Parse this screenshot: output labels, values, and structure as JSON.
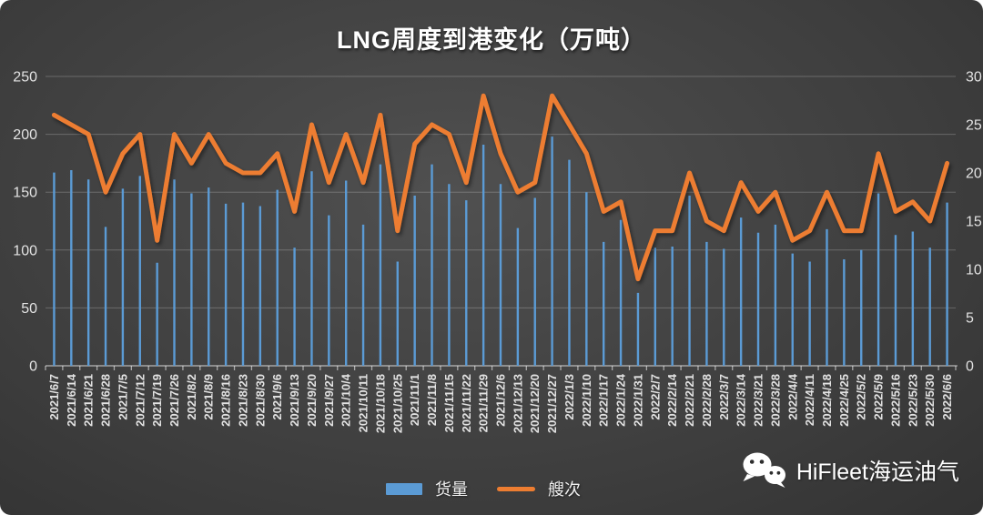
{
  "title": "LNG周度到港变化（万吨）",
  "legend": {
    "bar_label": "货量",
    "line_label": "艘次"
  },
  "watermark": {
    "text": "HiFleet海运油气",
    "icon": "wechat-icon"
  },
  "colors": {
    "bar": "#5B9BD5",
    "line": "#ED7D31",
    "text": "#e2e2e2",
    "gridline": "rgba(255,255,255,0.22)",
    "axis_line": "rgba(255,255,255,0.55)",
    "background_center": "#505050",
    "background_edge": "#262626"
  },
  "left_axis": {
    "ticks": [
      0,
      50,
      100,
      150,
      200,
      250
    ]
  },
  "right_axis": {
    "ticks": [
      0,
      5,
      10,
      15,
      20,
      25,
      30
    ]
  },
  "chart_data": {
    "type": "bar",
    "subtype": "bar+line combo, dual axis",
    "title": "LNG周度到港变化（万吨）",
    "xlabel": "",
    "ylabel_left": "",
    "ylabel_right": "",
    "left_ylim": [
      0,
      250
    ],
    "right_ylim": [
      0,
      30
    ],
    "grid": true,
    "legend_position": "bottom",
    "categories": [
      "2021/6/7",
      "2021/6/14",
      "2021/6/21",
      "2021/6/28",
      "2021/7/5",
      "2021/7/12",
      "2021/7/19",
      "2021/7/26",
      "2021/8/2",
      "2021/8/9",
      "2021/8/16",
      "2021/8/23",
      "2021/8/30",
      "2021/9/6",
      "2021/9/13",
      "2021/9/20",
      "2021/9/27",
      "2021/10/4",
      "2021/10/11",
      "2021/10/18",
      "2021/10/25",
      "2021/11/1",
      "2021/11/8",
      "2021/11/15",
      "2021/11/22",
      "2021/11/29",
      "2021/12/6",
      "2021/12/13",
      "2021/12/20",
      "2021/12/27",
      "2022/1/3",
      "2022/1/10",
      "2022/1/17",
      "2022/1/24",
      "2022/1/31",
      "2022/2/7",
      "2022/2/14",
      "2022/2/21",
      "2022/2/28",
      "2022/3/7",
      "2022/3/14",
      "2022/3/21",
      "2022/3/28",
      "2022/4/4",
      "2022/4/11",
      "2022/4/18",
      "2022/4/25",
      "2022/5/2",
      "2022/5/9",
      "2022/5/16",
      "2022/5/23",
      "2022/5/30",
      "2022/6/6"
    ],
    "series": [
      {
        "name": "货量",
        "type": "bar",
        "axis": "left",
        "color": "#5B9BD5",
        "values": [
          167,
          169,
          161,
          120,
          153,
          164,
          89,
          161,
          149,
          154,
          140,
          141,
          138,
          152,
          102,
          168,
          130,
          160,
          122,
          174,
          90,
          147,
          174,
          157,
          143,
          191,
          157,
          119,
          145,
          198,
          178,
          150,
          107,
          126,
          63,
          102,
          103,
          147,
          107,
          101,
          128,
          115,
          122,
          97,
          90,
          118,
          92,
          100,
          149,
          113,
          116,
          102,
          141
        ]
      },
      {
        "name": "艘次",
        "type": "line",
        "axis": "right",
        "color": "#ED7D31",
        "values": [
          26,
          25,
          24,
          18,
          22,
          24,
          13,
          24,
          21,
          24,
          21,
          20,
          20,
          22,
          16,
          25,
          19,
          24,
          19,
          26,
          14,
          23,
          25,
          24,
          19,
          28,
          22,
          18,
          19,
          28,
          25,
          22,
          16,
          17,
          9,
          14,
          14,
          20,
          15,
          14,
          19,
          16,
          18,
          13,
          14,
          18,
          14,
          14,
          22,
          16,
          17,
          15,
          21
        ]
      }
    ]
  }
}
